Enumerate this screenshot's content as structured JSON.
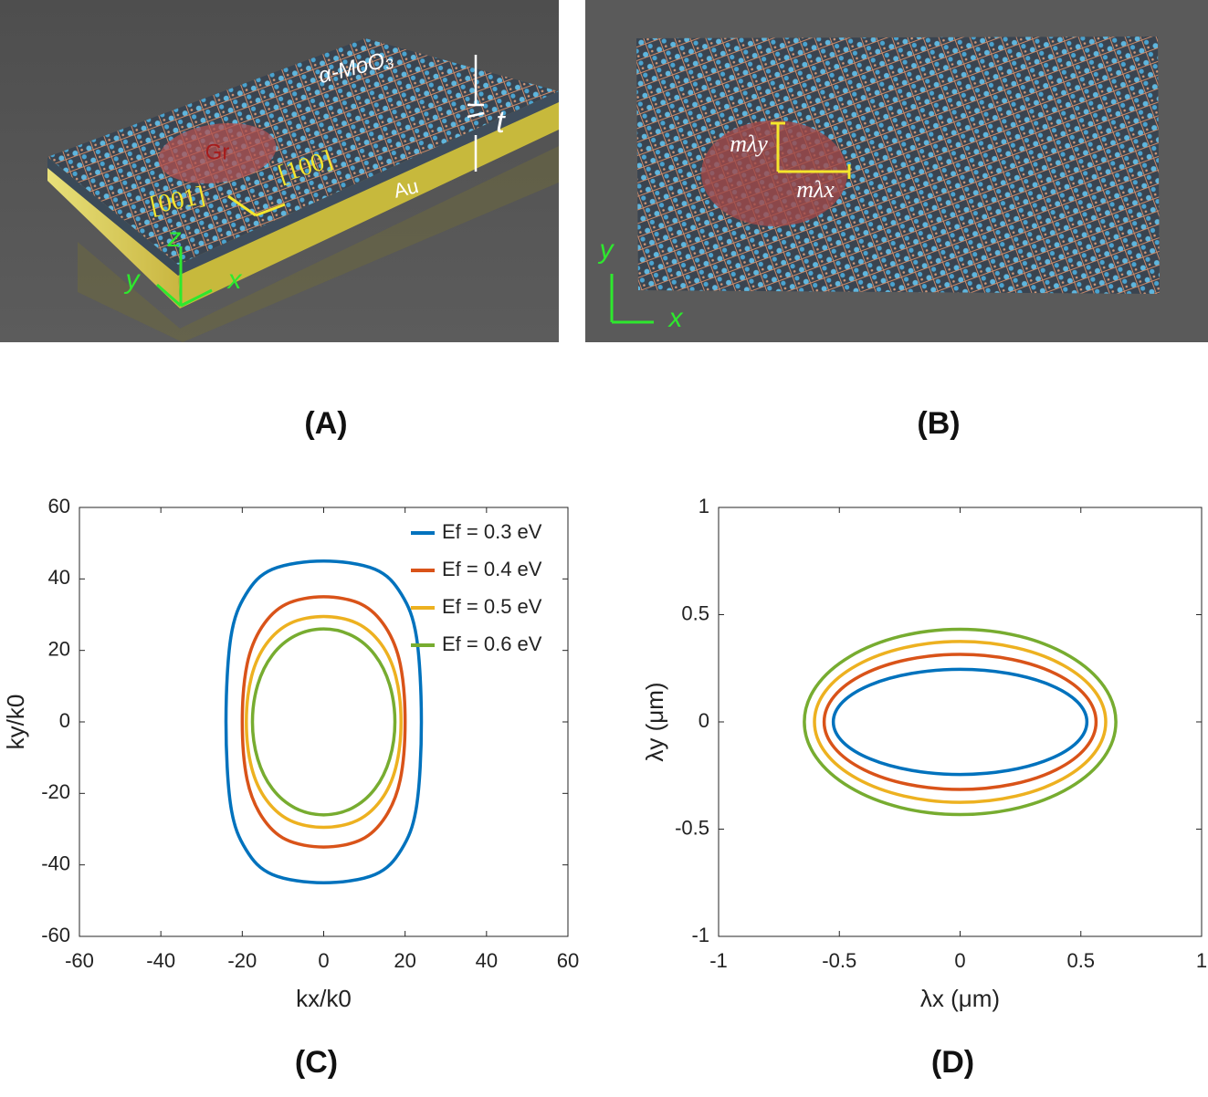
{
  "figure_a": {
    "label": "(A)",
    "material": "α-MoO₃",
    "graphene": "Gr",
    "direction_1": "[001]",
    "direction_2": "[100]",
    "substrate": "Au",
    "thickness": "t",
    "axis_z": "z",
    "axis_y": "y",
    "axis_x": "x"
  },
  "figure_b": {
    "label": "(B)",
    "length_y": "mλy",
    "length_x": "mλx",
    "axis_y": "y",
    "axis_x": "x"
  },
  "chart_data": [
    {
      "type": "line",
      "panel_label": "(C)",
      "xlabel": "kx/k0",
      "ylabel": "ky/k0",
      "xlim": [
        -60,
        60
      ],
      "ylim": [
        -60,
        60
      ],
      "xticks": [
        -60,
        -40,
        -20,
        0,
        20,
        40,
        60
      ],
      "yticks": [
        -60,
        -40,
        -20,
        0,
        20,
        40,
        60
      ],
      "legend": "upper right",
      "series": [
        {
          "name": "Ef = 0.3 eV",
          "color": "#0072BD",
          "x": [
            24,
            22.8,
            19.1,
            12.6,
            0,
            -12.6,
            -19.1,
            -22.8,
            -24,
            -22.8,
            -19.1,
            -12.6,
            0,
            12.6,
            19.1,
            22.8
          ],
          "values": [
            0,
            23.7,
            35.7,
            42.7,
            45,
            42.7,
            35.7,
            23.7,
            0,
            -23.7,
            -35.7,
            -42.7,
            -45,
            -42.7,
            -35.7,
            -23.7
          ]
        },
        {
          "name": "Ef = 0.4 eV",
          "color": "#D95319",
          "x": [
            20,
            18.8,
            15.2,
            9.3,
            0,
            -9.3,
            -15.2,
            -18.8,
            -20,
            -18.8,
            -15.2,
            -9.3,
            0,
            9.3,
            15.2,
            18.8
          ],
          "values": [
            0,
            16.2,
            26.5,
            32.9,
            35,
            32.9,
            26.5,
            16.2,
            0,
            -16.2,
            -26.5,
            -32.9,
            -35,
            -32.9,
            -26.5,
            -16.2
          ]
        },
        {
          "name": "Ef = 0.5 eV",
          "color": "#EDB120",
          "x": [
            19,
            17.7,
            14.1,
            8.2,
            0,
            -8.2,
            -14.1,
            -17.7,
            -19,
            -17.7,
            -14.1,
            -8.2,
            0,
            8.2,
            14.1,
            17.7
          ],
          "values": [
            0,
            12.8,
            21.8,
            27.6,
            29.5,
            27.6,
            21.8,
            12.8,
            0,
            -12.8,
            -21.8,
            -27.6,
            -29.5,
            -27.6,
            -21.8,
            -12.8
          ]
        },
        {
          "name": "Ef = 0.6 eV",
          "color": "#77AC30",
          "x": [
            17.5,
            16.2,
            12.6,
            7,
            0,
            -7,
            -12.6,
            -16.2,
            -17.5,
            -16.2,
            -12.6,
            -7,
            0,
            7,
            12.6,
            16.2
          ],
          "values": [
            0,
            10.4,
            18.7,
            24.1,
            26,
            24.1,
            18.7,
            10.4,
            0,
            -10.4,
            -18.7,
            -24.1,
            -26,
            -24.1,
            -18.7,
            -10.4
          ]
        }
      ]
    },
    {
      "type": "line",
      "panel_label": "(D)",
      "xlabel": "λx (μm)",
      "ylabel": "λy (μm)",
      "xlim": [
        -1,
        1
      ],
      "ylim": [
        -1,
        1
      ],
      "xticks": [
        -1,
        -0.5,
        0,
        0.5,
        1
      ],
      "yticks": [
        -1,
        -0.5,
        0,
        0.5,
        1
      ],
      "series": [
        {
          "color": "#0072BD",
          "x": [
            0.525,
            0.485,
            0.371,
            0.201,
            0,
            -0.201,
            -0.371,
            -0.485,
            -0.525,
            -0.485,
            -0.371,
            -0.201,
            0,
            0.201,
            0.371,
            0.485
          ],
          "values": [
            0,
            0.094,
            0.173,
            0.226,
            0.245,
            0.226,
            0.173,
            0.094,
            0,
            -0.094,
            -0.173,
            -0.226,
            -0.245,
            -0.226,
            -0.173,
            -0.094
          ]
        },
        {
          "color": "#D95319",
          "x": [
            0.563,
            0.52,
            0.398,
            0.216,
            0,
            -0.216,
            -0.398,
            -0.52,
            -0.563,
            -0.52,
            -0.398,
            -0.216,
            0,
            0.216,
            0.398,
            0.52
          ],
          "values": [
            0,
            0.121,
            0.223,
            0.291,
            0.315,
            0.291,
            0.223,
            0.121,
            0,
            -0.121,
            -0.223,
            -0.291,
            -0.315,
            -0.291,
            -0.223,
            -0.121
          ]
        },
        {
          "color": "#EDB120",
          "x": [
            0.603,
            0.557,
            0.426,
            0.231,
            0,
            -0.231,
            -0.426,
            -0.557,
            -0.603,
            -0.557,
            -0.426,
            -0.231,
            0,
            0.231,
            0.426,
            0.557
          ],
          "values": [
            0,
            0.144,
            0.265,
            0.346,
            0.375,
            0.346,
            0.265,
            0.144,
            0,
            -0.144,
            -0.265,
            -0.346,
            -0.375,
            -0.346,
            -0.265,
            -0.144
          ]
        },
        {
          "color": "#77AC30",
          "x": [
            0.645,
            0.596,
            0.456,
            0.247,
            0,
            -0.247,
            -0.456,
            -0.596,
            -0.645,
            -0.596,
            -0.456,
            -0.247,
            0,
            0.247,
            0.456,
            0.596
          ],
          "values": [
            0,
            0.165,
            0.305,
            0.399,
            0.432,
            0.399,
            0.305,
            0.165,
            0,
            -0.165,
            -0.305,
            -0.399,
            -0.432,
            -0.399,
            -0.305,
            -0.165
          ]
        }
      ]
    }
  ]
}
